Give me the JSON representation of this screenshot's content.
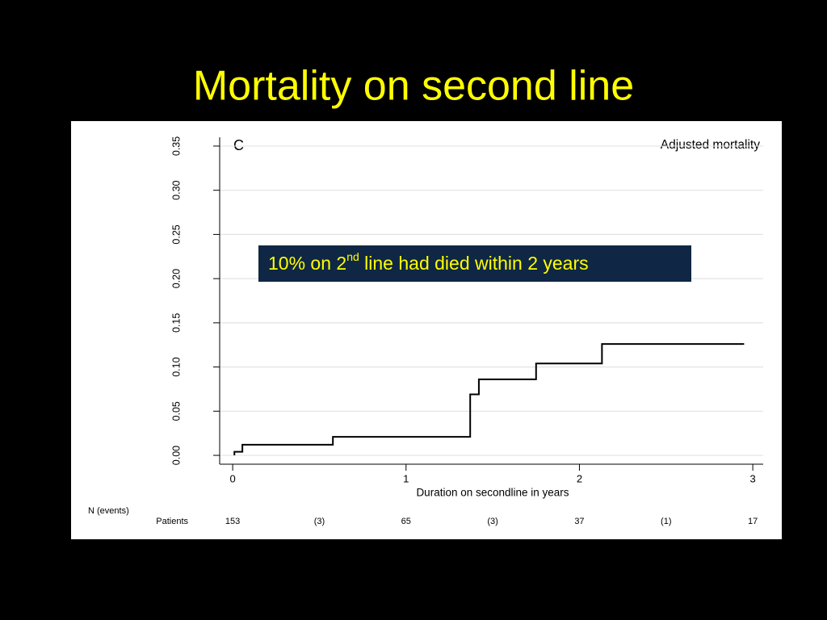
{
  "slide": {
    "title": "Mortality on second line"
  },
  "chart_data": {
    "type": "line",
    "panel_label": "C",
    "subtitle": "Adjusted mortality",
    "annotation": {
      "parts": [
        "10% on 2",
        "nd",
        " line had died within 2 years"
      ]
    },
    "x_label": "Duration on secondline in years",
    "series": [
      {
        "name": "Adjusted mortality",
        "color": "#000000",
        "x": [
          0.01,
          0.01,
          0.056,
          0.056,
          0.578,
          0.578,
          1.37,
          1.37,
          1.42,
          1.42,
          1.75,
          1.75,
          2.13,
          2.13,
          2.95
        ],
        "values": [
          0,
          0.004,
          0.004,
          0.012,
          0.012,
          0.021,
          0.021,
          0.069,
          0.069,
          0.086,
          0.086,
          0.104,
          0.104,
          0.126,
          0.126
        ]
      }
    ],
    "xlim": [
      -0.075,
      3.06
    ],
    "ylim": [
      -0.01,
      0.36
    ],
    "xticks": [
      0,
      1,
      2,
      3
    ],
    "yticks": [
      {
        "value": 0,
        "label": "0.00"
      },
      {
        "value": 0.05,
        "label": "0.05"
      },
      {
        "value": 0.1,
        "label": "0.10"
      },
      {
        "value": 0.15,
        "label": "0.15"
      },
      {
        "value": 0.2,
        "label": "0.20"
      },
      {
        "value": 0.25,
        "label": "0.25"
      },
      {
        "value": 0.3,
        "label": "0.30"
      },
      {
        "value": 0.35,
        "label": "0.35"
      }
    ],
    "grid": true,
    "risk_table": {
      "title": "N (events)",
      "row_label": "Patients",
      "entries": [
        "153",
        "(3)",
        "65",
        "(3)",
        "37",
        "(1)",
        "17"
      ]
    }
  }
}
